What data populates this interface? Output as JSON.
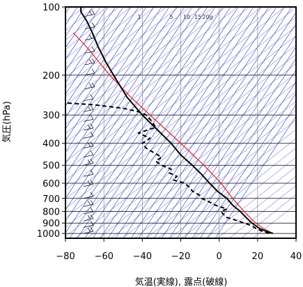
{
  "chart_data": {
    "type": "line",
    "xlabel": "気温(実線), 露点(破線)",
    "ylabel": "気圧(hPa)",
    "xlim": [
      -80,
      40
    ],
    "ylim": [
      1050,
      100
    ],
    "y_scale": "log",
    "x_ticks": [
      "−80",
      "−60",
      "−40",
      "−20",
      "0",
      "20",
      "40"
    ],
    "x_tick_values": [
      -80,
      -60,
      -40,
      -20,
      0,
      20,
      40
    ],
    "y_ticks": [
      "100",
      "200",
      "300",
      "400",
      "500",
      "600",
      "700",
      "800",
      "900",
      "1000"
    ],
    "y_tick_values": [
      100,
      200,
      300,
      400,
      500,
      600,
      700,
      800,
      900,
      1000
    ],
    "mixing_ratio_labels": [
      "1",
      "5",
      "10",
      "15",
      "20g"
    ],
    "colors": {
      "temperature": "#000000",
      "dewpoint": "#000000",
      "parcel": "#e02020",
      "guides": "#3333cc",
      "grid": "#000000"
    },
    "series": [
      {
        "key": "temperature",
        "style": "solid",
        "p": [
          1000,
          975,
          950,
          925,
          900,
          850,
          800,
          750,
          700,
          650,
          600,
          550,
          500,
          450,
          400,
          350,
          300,
          250,
          200,
          175,
          150,
          130,
          115,
          105,
          100
        ],
        "t": [
          28,
          24,
          21,
          19,
          17,
          14,
          11,
          7,
          4,
          -1,
          -5,
          -9,
          -14,
          -20,
          -25,
          -32,
          -40,
          -48,
          -55,
          -59,
          -63,
          -66,
          -69,
          -72,
          -72
        ]
      },
      {
        "key": "dewpoint",
        "style": "dashed",
        "p": [
          1000,
          975,
          950,
          925,
          900,
          870,
          850,
          820,
          800,
          780,
          750,
          720,
          700,
          680,
          650,
          630,
          600,
          580,
          560,
          540,
          520,
          500,
          480,
          460,
          440,
          420,
          400,
          380,
          360,
          340,
          320,
          300,
          290,
          280,
          270,
          265
        ],
        "t": [
          26,
          22,
          19,
          17,
          13,
          8,
          4,
          2,
          1,
          4,
          -2,
          -6,
          -9,
          -10,
          -14,
          -15,
          -18,
          -24,
          -22,
          -26,
          -25,
          -30,
          -33,
          -30,
          -34,
          -38,
          -40,
          -36,
          -42,
          -33,
          -35,
          -38,
          -42,
          -50,
          -66,
          -81
        ]
      },
      {
        "key": "parcel",
        "style": "solid",
        "p": [
          1000,
          950,
          900,
          850,
          800,
          700,
          600,
          500,
          400,
          300,
          250,
          200,
          150,
          130
        ],
        "t": [
          28,
          23,
          19,
          16,
          13,
          7,
          1,
          -8,
          -20,
          -36,
          -46,
          -57,
          -69,
          -76
        ]
      }
    ]
  }
}
